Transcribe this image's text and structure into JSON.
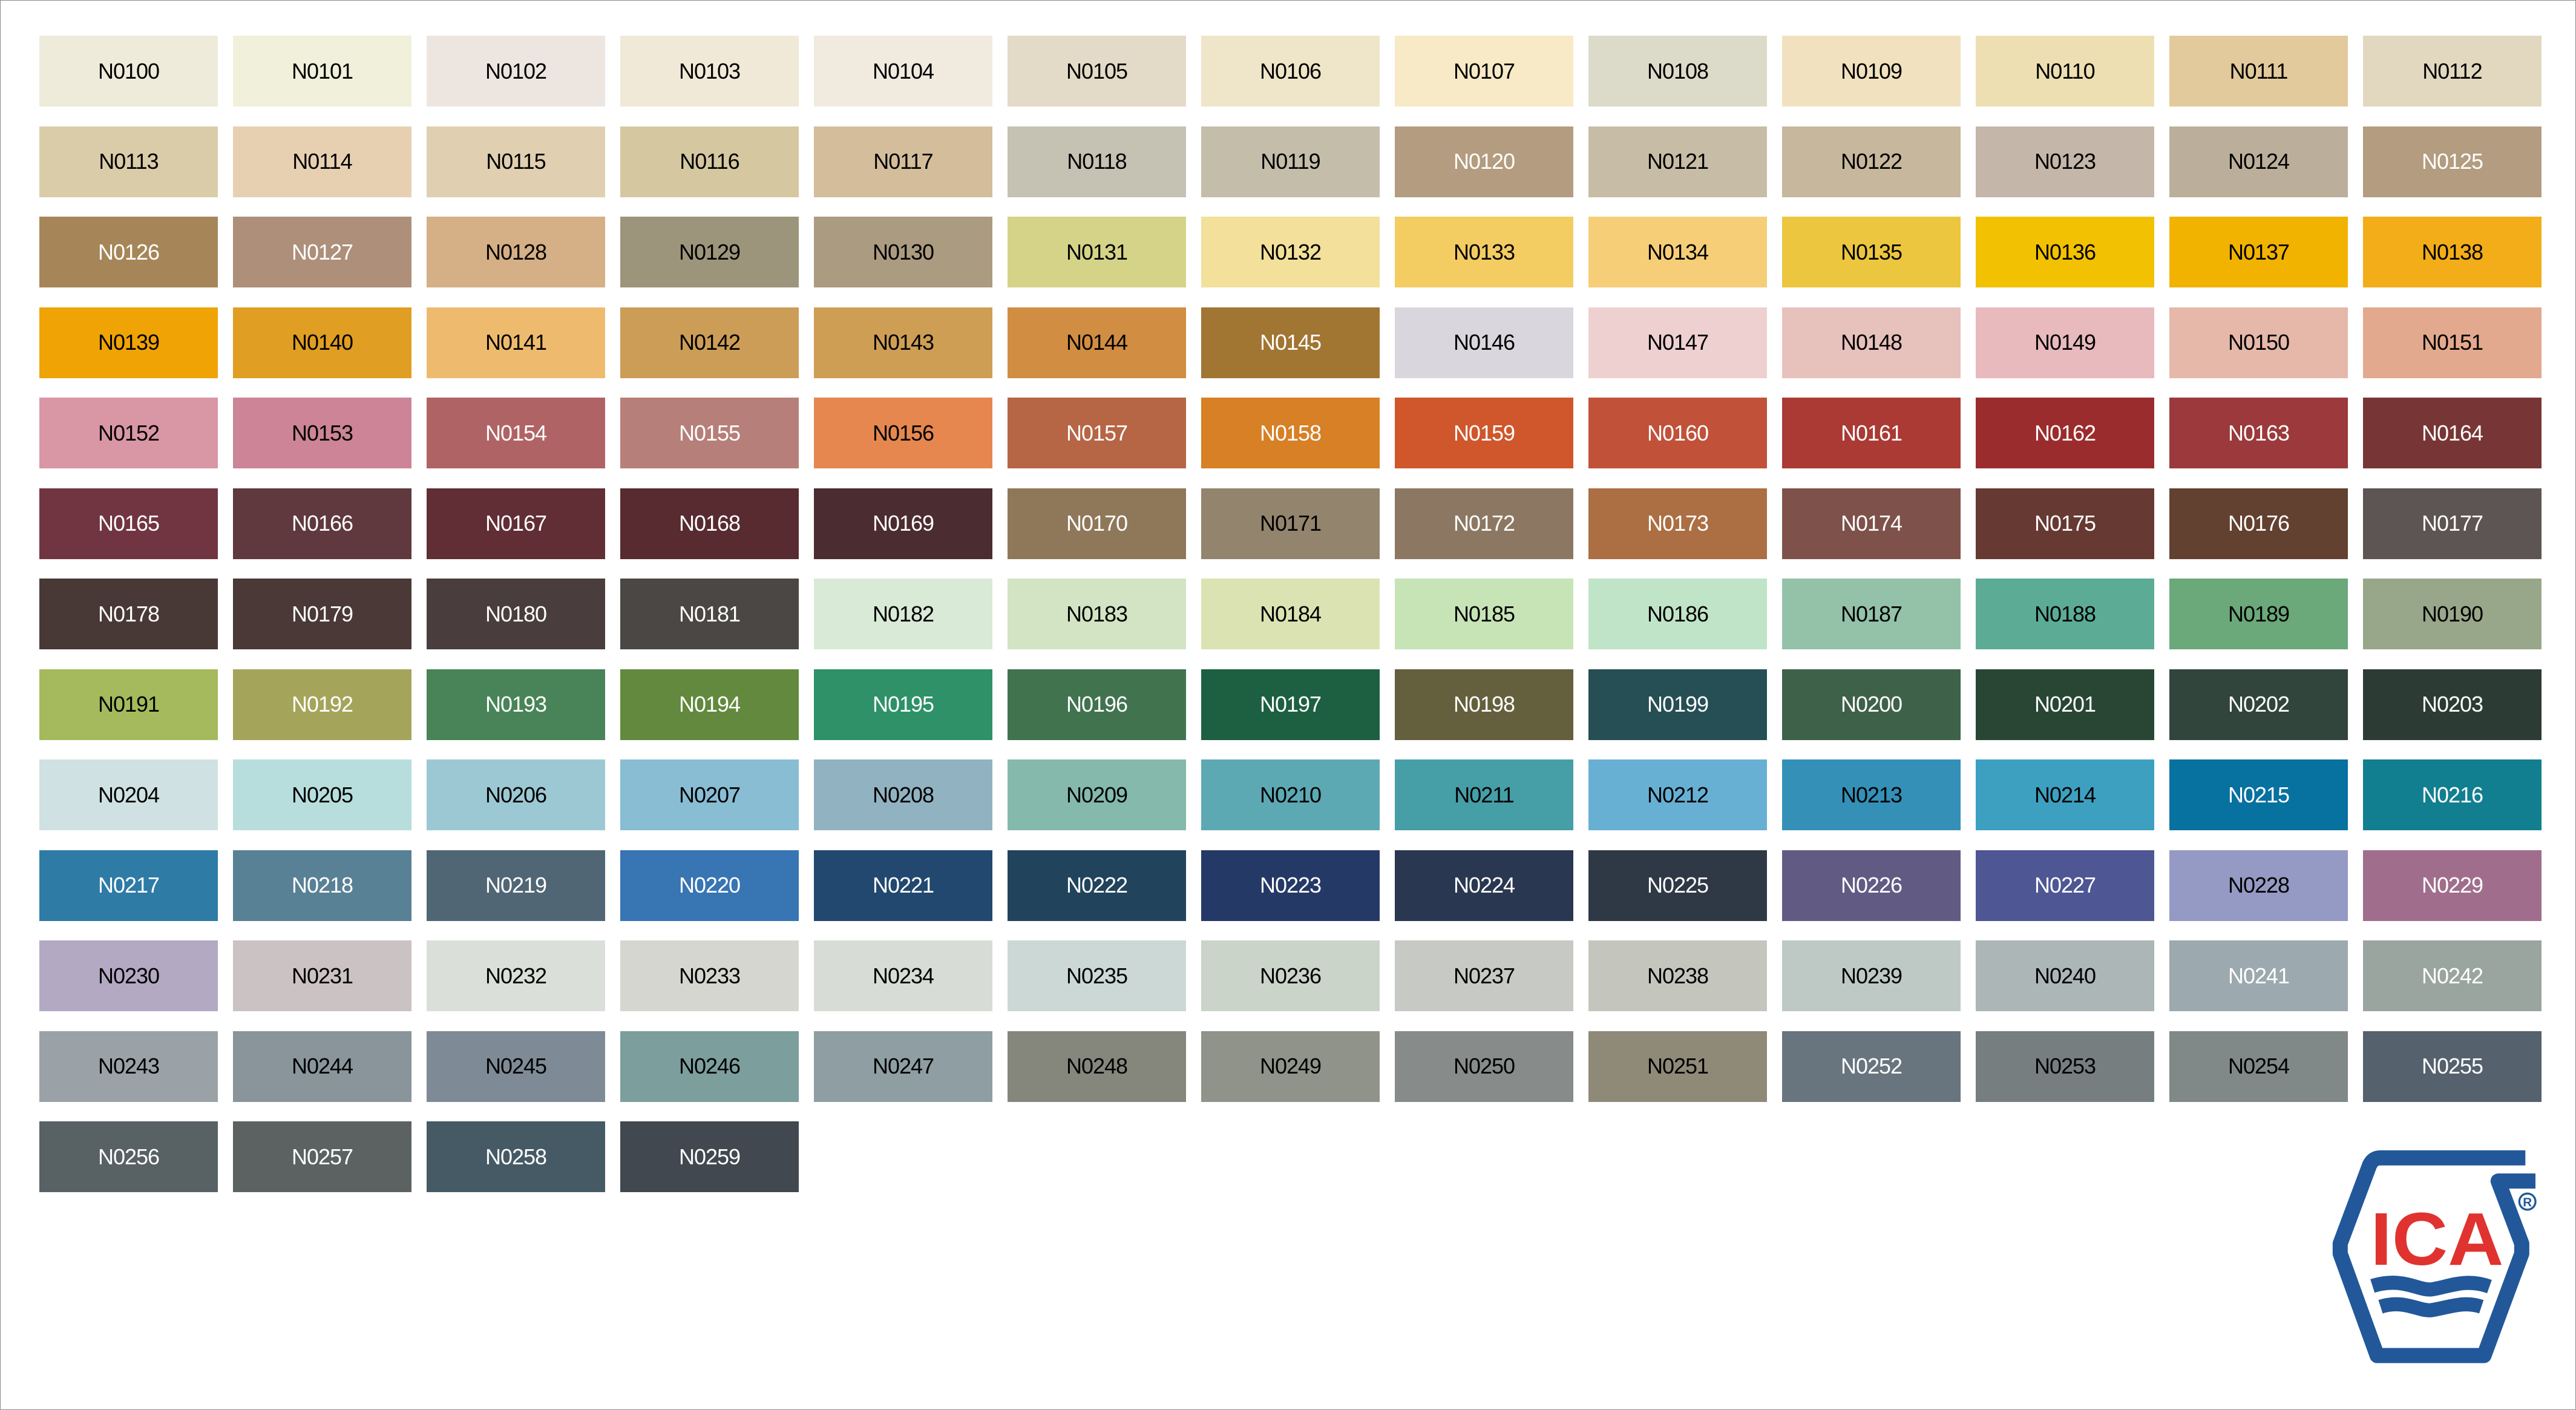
{
  "swatches": [
    {
      "code": "N0100",
      "color": "#EEEBDB",
      "text": "#000"
    },
    {
      "code": "N0101",
      "color": "#F0F0DB",
      "text": "#000"
    },
    {
      "code": "N0102",
      "color": "#EDE6E0",
      "text": "#000"
    },
    {
      "code": "N0103",
      "color": "#F0E9D7",
      "text": "#000"
    },
    {
      "code": "N0104",
      "color": "#F1EADF",
      "text": "#000"
    },
    {
      "code": "N0105",
      "color": "#E3DAC7",
      "text": "#000"
    },
    {
      "code": "N0106",
      "color": "#EFE5C8",
      "text": "#000"
    },
    {
      "code": "N0107",
      "color": "#F8EAC6",
      "text": "#000"
    },
    {
      "code": "N0108",
      "color": "#DCDBC9",
      "text": "#000"
    },
    {
      "code": "N0109",
      "color": "#F1E1BF",
      "text": "#000"
    },
    {
      "code": "N0110",
      "color": "#EDDFB2",
      "text": "#000"
    },
    {
      "code": "N0111",
      "color": "#E2CA9C",
      "text": "#000"
    },
    {
      "code": "N0112",
      "color": "#E1D8BF",
      "text": "#000"
    },
    {
      "code": "N0113",
      "color": "#DBCCA9",
      "text": "#000"
    },
    {
      "code": "N0114",
      "color": "#E7D0B2",
      "text": "#000"
    },
    {
      "code": "N0115",
      "color": "#E0CFB0",
      "text": "#000"
    },
    {
      "code": "N0116",
      "color": "#D5C7A0",
      "text": "#000"
    },
    {
      "code": "N0117",
      "color": "#D4BD9B",
      "text": "#000"
    },
    {
      "code": "N0118",
      "color": "#C5C1B3",
      "text": "#000"
    },
    {
      "code": "N0119",
      "color": "#C4BDA9",
      "text": "#000"
    },
    {
      "code": "N0120",
      "color": "#B39C7F",
      "text": "#fff"
    },
    {
      "code": "N0121",
      "color": "#C7BCA5",
      "text": "#000"
    },
    {
      "code": "N0122",
      "color": "#C7B79C",
      "text": "#000"
    },
    {
      "code": "N0123",
      "color": "#C4B7A9",
      "text": "#000"
    },
    {
      "code": "N0124",
      "color": "#BBAF9B",
      "text": "#000"
    },
    {
      "code": "N0125",
      "color": "#B39C7F",
      "text": "#fff"
    },
    {
      "code": "N0126",
      "color": "#A68658",
      "text": "#fff"
    },
    {
      "code": "N0127",
      "color": "#AE8F7A",
      "text": "#fff"
    },
    {
      "code": "N0128",
      "color": "#D5AF85",
      "text": "#000"
    },
    {
      "code": "N0129",
      "color": "#9D957B",
      "text": "#000"
    },
    {
      "code": "N0130",
      "color": "#AB9B80",
      "text": "#000"
    },
    {
      "code": "N0131",
      "color": "#D5D388",
      "text": "#000"
    },
    {
      "code": "N0132",
      "color": "#F2E09B",
      "text": "#000"
    },
    {
      "code": "N0133",
      "color": "#F3CC62",
      "text": "#000"
    },
    {
      "code": "N0134",
      "color": "#F6CE78",
      "text": "#000"
    },
    {
      "code": "N0135",
      "color": "#ECC63E",
      "text": "#000"
    },
    {
      "code": "N0136",
      "color": "#F2C101",
      "text": "#000"
    },
    {
      "code": "N0137",
      "color": "#F1B300",
      "text": "#000"
    },
    {
      "code": "N0138",
      "color": "#F2AD18",
      "text": "#000"
    },
    {
      "code": "N0139",
      "color": "#EFA305",
      "text": "#000"
    },
    {
      "code": "N0140",
      "color": "#E09E22",
      "text": "#000"
    },
    {
      "code": "N0141",
      "color": "#EEBB6E",
      "text": "#000"
    },
    {
      "code": "N0142",
      "color": "#CC9D56",
      "text": "#000"
    },
    {
      "code": "N0143",
      "color": "#CF9E55",
      "text": "#000"
    },
    {
      "code": "N0144",
      "color": "#D18D42",
      "text": "#000"
    },
    {
      "code": "N0145",
      "color": "#A17532",
      "text": "#fff"
    },
    {
      "code": "N0146",
      "color": "#D9D7DD",
      "text": "#000"
    },
    {
      "code": "N0147",
      "color": "#EDD0CF",
      "text": "#000"
    },
    {
      "code": "N0148",
      "color": "#E7C1BC",
      "text": "#000"
    },
    {
      "code": "N0149",
      "color": "#E8BABD",
      "text": "#000"
    },
    {
      "code": "N0150",
      "color": "#E5B8AA",
      "text": "#000"
    },
    {
      "code": "N0151",
      "color": "#E3A98E",
      "text": "#000"
    },
    {
      "code": "N0152",
      "color": "#D996A5",
      "text": "#000"
    },
    {
      "code": "N0153",
      "color": "#CC8496",
      "text": "#000"
    },
    {
      "code": "N0154",
      "color": "#B06365",
      "text": "#fff"
    },
    {
      "code": "N0155",
      "color": "#B77F79",
      "text": "#fff"
    },
    {
      "code": "N0156",
      "color": "#E5874F",
      "text": "#000"
    },
    {
      "code": "N0157",
      "color": "#B66545",
      "text": "#fff"
    },
    {
      "code": "N0158",
      "color": "#D78026",
      "text": "#fff"
    },
    {
      "code": "N0159",
      "color": "#CF572B",
      "text": "#fff"
    },
    {
      "code": "N0160",
      "color": "#C15139",
      "text": "#fff"
    },
    {
      "code": "N0161",
      "color": "#AB3A35",
      "text": "#fff"
    },
    {
      "code": "N0162",
      "color": "#9B2C2D",
      "text": "#fff"
    },
    {
      "code": "N0163",
      "color": "#9B393C",
      "text": "#fff"
    },
    {
      "code": "N0164",
      "color": "#773635",
      "text": "#fff"
    },
    {
      "code": "N0165",
      "color": "#713542",
      "text": "#fff"
    },
    {
      "code": "N0166",
      "color": "#5F393E",
      "text": "#fff"
    },
    {
      "code": "N0167",
      "color": "#602E34",
      "text": "#fff"
    },
    {
      "code": "N0168",
      "color": "#572B2F",
      "text": "#fff"
    },
    {
      "code": "N0169",
      "color": "#4A2C31",
      "text": "#fff"
    },
    {
      "code": "N0170",
      "color": "#8F785A",
      "text": "#fff"
    },
    {
      "code": "N0171",
      "color": "#93846E",
      "text": "#000"
    },
    {
      "code": "N0172",
      "color": "#8C7862",
      "text": "#fff"
    },
    {
      "code": "N0173",
      "color": "#AB6F43",
      "text": "#fff"
    },
    {
      "code": "N0174",
      "color": "#7E524B",
      "text": "#fff"
    },
    {
      "code": "N0175",
      "color": "#663932",
      "text": "#fff"
    },
    {
      "code": "N0176",
      "color": "#634130",
      "text": "#fff"
    },
    {
      "code": "N0177",
      "color": "#5D5553",
      "text": "#fff"
    },
    {
      "code": "N0178",
      "color": "#493936",
      "text": "#fff"
    },
    {
      "code": "N0179",
      "color": "#4B3937",
      "text": "#fff"
    },
    {
      "code": "N0180",
      "color": "#493D3D",
      "text": "#fff"
    },
    {
      "code": "N0181",
      "color": "#4A4744",
      "text": "#fff"
    },
    {
      "code": "N0182",
      "color": "#D9EAD6",
      "text": "#000"
    },
    {
      "code": "N0183",
      "color": "#D2E4C4",
      "text": "#000"
    },
    {
      "code": "N0184",
      "color": "#DCE3B3",
      "text": "#000"
    },
    {
      "code": "N0185",
      "color": "#C7E4B7",
      "text": "#000"
    },
    {
      "code": "N0186",
      "color": "#C0E4C7",
      "text": "#000"
    },
    {
      "code": "N0187",
      "color": "#93C2A8",
      "text": "#000"
    },
    {
      "code": "N0188",
      "color": "#5CAC95",
      "text": "#000"
    },
    {
      "code": "N0189",
      "color": "#6BA87A",
      "text": "#000"
    },
    {
      "code": "N0190",
      "color": "#98A78A",
      "text": "#000"
    },
    {
      "code": "N0191",
      "color": "#A4BA5C",
      "text": "#000"
    },
    {
      "code": "N0192",
      "color": "#A4A55A",
      "text": "#fff"
    },
    {
      "code": "N0193",
      "color": "#488457",
      "text": "#fff"
    },
    {
      "code": "N0194",
      "color": "#62893D",
      "text": "#fff"
    },
    {
      "code": "N0195",
      "color": "#2E9168",
      "text": "#fff"
    },
    {
      "code": "N0196",
      "color": "#41734F",
      "text": "#fff"
    },
    {
      "code": "N0197",
      "color": "#1D6041",
      "text": "#fff"
    },
    {
      "code": "N0198",
      "color": "#645F3D",
      "text": "#fff"
    },
    {
      "code": "N0199",
      "color": "#254F54",
      "text": "#fff"
    },
    {
      "code": "N0200",
      "color": "#3E6149",
      "text": "#fff"
    },
    {
      "code": "N0201",
      "color": "#294635",
      "text": "#fff"
    },
    {
      "code": "N0202",
      "color": "#31453D",
      "text": "#fff"
    },
    {
      "code": "N0203",
      "color": "#2C3B34",
      "text": "#fff"
    },
    {
      "code": "N0204",
      "color": "#CFE1E2",
      "text": "#000"
    },
    {
      "code": "N0205",
      "color": "#B7DEDD",
      "text": "#000"
    },
    {
      "code": "N0206",
      "color": "#9CC8D3",
      "text": "#000"
    },
    {
      "code": "N0207",
      "color": "#88BDD4",
      "text": "#000"
    },
    {
      "code": "N0208",
      "color": "#91B2C1",
      "text": "#000"
    },
    {
      "code": "N0209",
      "color": "#84B9AC",
      "text": "#000"
    },
    {
      "code": "N0210",
      "color": "#5CA9B3",
      "text": "#000"
    },
    {
      "code": "N0211",
      "color": "#469EA7",
      "text": "#000"
    },
    {
      "code": "N0212",
      "color": "#67B0D4",
      "text": "#000"
    },
    {
      "code": "N0213",
      "color": "#3490B7",
      "text": "#000"
    },
    {
      "code": "N0214",
      "color": "#3DA0C1",
      "text": "#000"
    },
    {
      "code": "N0215",
      "color": "#07719F",
      "text": "#fff"
    },
    {
      "code": "N0216",
      "color": "#127F90",
      "text": "#fff"
    },
    {
      "code": "N0217",
      "color": "#2E7BA6",
      "text": "#fff"
    },
    {
      "code": "N0218",
      "color": "#598195",
      "text": "#fff"
    },
    {
      "code": "N0219",
      "color": "#516675",
      "text": "#fff"
    },
    {
      "code": "N0220",
      "color": "#3775B3",
      "text": "#fff"
    },
    {
      "code": "N0221",
      "color": "#224870",
      "text": "#fff"
    },
    {
      "code": "N0222",
      "color": "#21445C",
      "text": "#fff"
    },
    {
      "code": "N0223",
      "color": "#253966",
      "text": "#fff"
    },
    {
      "code": "N0224",
      "color": "#2A3751",
      "text": "#fff"
    },
    {
      "code": "N0225",
      "color": "#2F3945",
      "text": "#fff"
    },
    {
      "code": "N0226",
      "color": "#615B84",
      "text": "#fff"
    },
    {
      "code": "N0227",
      "color": "#4E5694",
      "text": "#fff"
    },
    {
      "code": "N0228",
      "color": "#959AC4",
      "text": "#000"
    },
    {
      "code": "N0229",
      "color": "#A06E8C",
      "text": "#fff"
    },
    {
      "code": "N0230",
      "color": "#B3A9C3",
      "text": "#000"
    },
    {
      "code": "N0231",
      "color": "#CBC2C4",
      "text": "#000"
    },
    {
      "code": "N0232",
      "color": "#DADFDA",
      "text": "#000"
    },
    {
      "code": "N0233",
      "color": "#D6D6D1",
      "text": "#000"
    },
    {
      "code": "N0234",
      "color": "#D7DCD6",
      "text": "#000"
    },
    {
      "code": "N0235",
      "color": "#CBD8D5",
      "text": "#000"
    },
    {
      "code": "N0236",
      "color": "#CBD4C9",
      "text": "#000"
    },
    {
      "code": "N0237",
      "color": "#C7C9C4",
      "text": "#000"
    },
    {
      "code": "N0238",
      "color": "#C4C6BE",
      "text": "#000"
    },
    {
      "code": "N0239",
      "color": "#BEC9C5",
      "text": "#000"
    },
    {
      "code": "N0240",
      "color": "#ADB6B7",
      "text": "#000"
    },
    {
      "code": "N0241",
      "color": "#9CA9AF",
      "text": "#fff"
    },
    {
      "code": "N0242",
      "color": "#9BA59F",
      "text": "#fff"
    },
    {
      "code": "N0243",
      "color": "#9AA2A7",
      "text": "#000"
    },
    {
      "code": "N0244",
      "color": "#89959A",
      "text": "#000"
    },
    {
      "code": "N0245",
      "color": "#7E8A95",
      "text": "#000"
    },
    {
      "code": "N0246",
      "color": "#7C9E9C",
      "text": "#000"
    },
    {
      "code": "N0247",
      "color": "#8F9EA2",
      "text": "#000"
    },
    {
      "code": "N0248",
      "color": "#86877C",
      "text": "#000"
    },
    {
      "code": "N0249",
      "color": "#909389",
      "text": "#000"
    },
    {
      "code": "N0250",
      "color": "#878B8A",
      "text": "#000"
    },
    {
      "code": "N0251",
      "color": "#8F8978",
      "text": "#000"
    },
    {
      "code": "N0252",
      "color": "#68757F",
      "text": "#fff"
    },
    {
      "code": "N0253",
      "color": "#767E7F",
      "text": "#000"
    },
    {
      "code": "N0254",
      "color": "#808987",
      "text": "#000"
    },
    {
      "code": "N0255",
      "color": "#55616D",
      "text": "#fff"
    },
    {
      "code": "N0256",
      "color": "#586164",
      "text": "#fff"
    },
    {
      "code": "N0257",
      "color": "#5C6262",
      "text": "#fff"
    },
    {
      "code": "N0258",
      "color": "#455A64",
      "text": "#fff"
    },
    {
      "code": "N0259",
      "color": "#41484F",
      "text": "#fff"
    }
  ],
  "logo": {
    "text": "ICA",
    "registered_mark": "R",
    "colors": {
      "blue": "#22589A",
      "red": "#E0332F"
    }
  }
}
